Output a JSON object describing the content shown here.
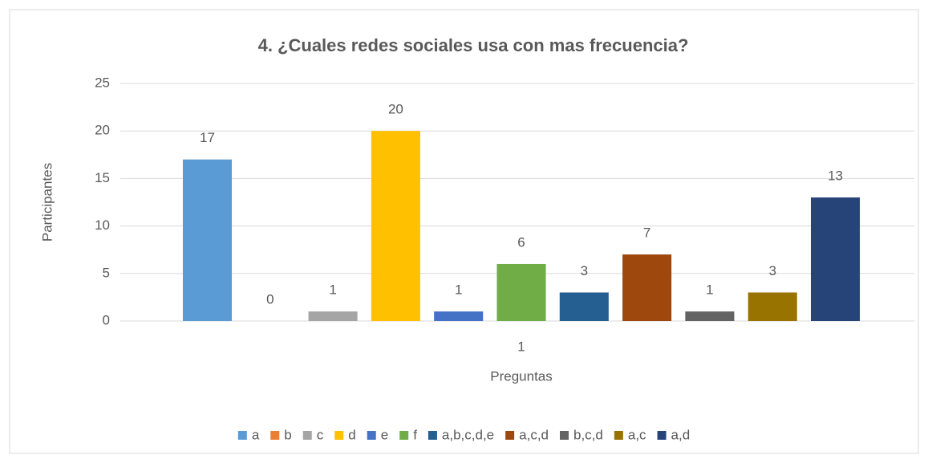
{
  "chart_data": {
    "type": "bar",
    "title": "4. ¿Cuales redes sociales usa con mas frecuencia?",
    "x_label": "Preguntas",
    "y_label": "Participantes",
    "categories": [
      "1"
    ],
    "series": [
      {
        "name": "a",
        "color": "#5b9bd5",
        "values": [
          17
        ]
      },
      {
        "name": "b",
        "color": "#ed7d31",
        "values": [
          0
        ]
      },
      {
        "name": "c",
        "color": "#a5a5a5",
        "values": [
          1
        ]
      },
      {
        "name": "d",
        "color": "#ffc000",
        "values": [
          20
        ]
      },
      {
        "name": "e",
        "color": "#4472c4",
        "values": [
          1
        ]
      },
      {
        "name": "f",
        "color": "#70ad47",
        "values": [
          6
        ]
      },
      {
        "name": "a,b,c,d,e",
        "color": "#255e91",
        "values": [
          3
        ]
      },
      {
        "name": "a,c,d",
        "color": "#9e480e",
        "values": [
          7
        ]
      },
      {
        "name": "b,c,d",
        "color": "#636363",
        "values": [
          1
        ]
      },
      {
        "name": "a,c",
        "color": "#997300",
        "values": [
          3
        ]
      },
      {
        "name": "a,d",
        "color": "#264478",
        "values": [
          13
        ]
      }
    ],
    "ylim": [
      0,
      25
    ],
    "yticks": [
      0,
      5,
      10,
      15,
      20,
      25
    ],
    "grid": true,
    "legend": "bottom"
  }
}
